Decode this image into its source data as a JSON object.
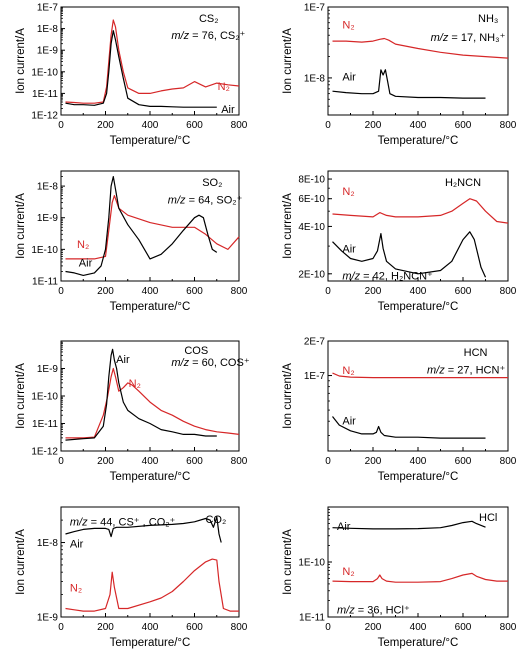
{
  "chart_data": [
    {
      "panel": "CS2",
      "type": "line",
      "yscale": "log",
      "title": "CS₂",
      "mz_label": "m/z = 76, CS₂⁺",
      "xlabel": "Temperature/°C",
      "ylabel": "Ion current/A",
      "xlim": [
        0,
        800
      ],
      "ylim": [
        1e-12,
        1e-07
      ],
      "xticks": [
        "0",
        "200",
        "400",
        "600",
        "800"
      ],
      "yticks": [
        "1E-12",
        "1E-11",
        "1E-10",
        "1E-9",
        "1E-8",
        "1E-7"
      ],
      "series": [
        {
          "name": "N₂",
          "color": "#d62728",
          "x": [
            20,
            60,
            100,
            150,
            190,
            205,
            215,
            225,
            235,
            245,
            260,
            280,
            300,
            350,
            400,
            450,
            500,
            550,
            600,
            650,
            700,
            750,
            800
          ],
          "y": [
            4e-12,
            3.8e-12,
            3.5e-12,
            3.5e-12,
            4e-12,
            2e-11,
            3e-10,
            5e-09,
            2.5e-08,
            1.2e-08,
            1e-09,
            1e-10,
            1.8e-11,
            1e-11,
            1e-11,
            1.3e-11,
            1.6e-11,
            1.8e-11,
            3.5e-11,
            2e-11,
            3e-11,
            2.5e-11,
            2.2e-11
          ]
        },
        {
          "name": "Air",
          "color": "#000000",
          "x": [
            20,
            60,
            100,
            150,
            190,
            205,
            215,
            225,
            235,
            245,
            260,
            280,
            300,
            350,
            400,
            450,
            500,
            550,
            600,
            650,
            700
          ],
          "y": [
            3.5e-12,
            3e-12,
            3e-12,
            2.8e-12,
            3.5e-12,
            1e-11,
            1e-10,
            2e-09,
            8e-09,
            3e-09,
            5e-10,
            5e-11,
            6e-12,
            3e-12,
            2.5e-12,
            2.5e-12,
            2.4e-12,
            2.3e-12,
            2.3e-12,
            2.3e-12,
            2.3e-12
          ]
        }
      ]
    },
    {
      "panel": "NH3",
      "type": "line",
      "yscale": "log",
      "title": "NH₃",
      "mz_label": "m/z = 17, NH₃⁺",
      "xlabel": "Temperature/°C",
      "ylabel": "Ion current/A",
      "xlim": [
        0,
        800
      ],
      "ylim": [
        3e-09,
        1e-07
      ],
      "xticks": [
        "0",
        "200",
        "400",
        "600",
        "800"
      ],
      "yticks": [
        "1E-8",
        "1E-7"
      ],
      "series": [
        {
          "name": "N₂",
          "color": "#d62728",
          "x": [
            20,
            80,
            150,
            200,
            230,
            250,
            270,
            300,
            400,
            500,
            600,
            700,
            800
          ],
          "y": [
            3.3e-08,
            3.3e-08,
            3.2e-08,
            3.3e-08,
            3.5e-08,
            3.6e-08,
            3.4e-08,
            3e-08,
            2.6e-08,
            2.3e-08,
            2.1e-08,
            2e-08,
            1.9e-08
          ]
        },
        {
          "name": "Air",
          "color": "#000000",
          "x": [
            20,
            80,
            150,
            200,
            225,
            235,
            245,
            255,
            265,
            275,
            300,
            400,
            500,
            600,
            700
          ],
          "y": [
            6.5e-09,
            6.2e-09,
            6e-09,
            6e-09,
            6.5e-09,
            1.3e-08,
            1.1e-08,
            1.3e-08,
            9e-09,
            6e-09,
            5.5e-09,
            5.3e-09,
            5.3e-09,
            5.2e-09,
            5.2e-09
          ]
        }
      ]
    },
    {
      "panel": "SO2",
      "type": "line",
      "yscale": "log",
      "title": "SO₂",
      "mz_label": "m/z = 64, SO₂⁺",
      "xlabel": "Temperature/°C",
      "ylabel": "Ion current/A",
      "xlim": [
        0,
        800
      ],
      "ylim": [
        1e-11,
        3e-08
      ],
      "xticks": [
        "0",
        "200",
        "400",
        "600",
        "800"
      ],
      "yticks": [
        "1E-11",
        "1E-10",
        "1E-9",
        "1E-8"
      ],
      "series": [
        {
          "name": "N₂",
          "color": "#d62728",
          "x": [
            20,
            80,
            150,
            200,
            215,
            230,
            240,
            260,
            300,
            400,
            500,
            600,
            650,
            700,
            750,
            800
          ],
          "y": [
            5e-11,
            5e-11,
            5e-11,
            6e-11,
            4e-10,
            3e-09,
            5e-09,
            2e-09,
            1.2e-09,
            7e-10,
            5e-10,
            5e-10,
            3e-10,
            1.5e-10,
            1e-10,
            2.5e-10
          ]
        },
        {
          "name": "Air",
          "color": "#000000",
          "x": [
            20,
            60,
            100,
            150,
            180,
            200,
            215,
            225,
            235,
            245,
            260,
            300,
            350,
            400,
            450,
            500,
            550,
            600,
            620,
            640,
            660,
            680,
            700
          ],
          "y": [
            2e-11,
            1.8e-11,
            1.5e-11,
            1.8e-11,
            3e-11,
            1e-10,
            1e-09,
            1e-08,
            2e-08,
            8e-09,
            2e-09,
            6e-10,
            2e-10,
            5e-11,
            7e-11,
            1.5e-10,
            4e-10,
            1e-09,
            1.2e-09,
            1e-09,
            3e-10,
            1e-10,
            8e-11
          ]
        }
      ]
    },
    {
      "panel": "H2NCN",
      "type": "line",
      "yscale": "log",
      "title": "H₂NCN",
      "mz_label": "m/z = 42, H₂NCN⁺",
      "xlabel": "Temperature/°C",
      "ylabel": "Ion current/A",
      "xlim": [
        0,
        800
      ],
      "ylim": [
        1.8e-10,
        9e-10
      ],
      "xticks": [
        "0",
        "200",
        "400",
        "600",
        "800"
      ],
      "yticks": [
        "2E-10",
        "4E-10",
        "6E-10",
        "8E-10"
      ],
      "series": [
        {
          "name": "N₂",
          "color": "#d62728",
          "x": [
            20,
            100,
            200,
            230,
            260,
            300,
            400,
            500,
            550,
            600,
            630,
            660,
            700,
            750,
            800
          ],
          "y": [
            4.8e-10,
            4.7e-10,
            4.6e-10,
            4.9e-10,
            4.7e-10,
            4.6e-10,
            4.6e-10,
            4.7e-10,
            5e-10,
            5.6e-10,
            6e-10,
            5.8e-10,
            5e-10,
            4.3e-10,
            4.2e-10
          ]
        },
        {
          "name": "Air",
          "color": "#000000",
          "x": [
            20,
            60,
            100,
            150,
            200,
            220,
            235,
            245,
            260,
            300,
            400,
            500,
            550,
            600,
            630,
            650,
            680,
            700
          ],
          "y": [
            3.2e-10,
            2.8e-10,
            2.5e-10,
            2.4e-10,
            2.5e-10,
            2.8e-10,
            3.6e-10,
            2.9e-10,
            2.4e-10,
            2.15e-10,
            2e-10,
            2.1e-10,
            2.4e-10,
            3.3e-10,
            3.7e-10,
            3.3e-10,
            2.2e-10,
            1.9e-10
          ]
        }
      ]
    },
    {
      "panel": "COS",
      "type": "line",
      "yscale": "log",
      "title": "COS",
      "mz_label": "m/z = 60, COS⁺",
      "xlabel": "Temperature/°C",
      "ylabel": "Ion current/A",
      "xlim": [
        0,
        800
      ],
      "ylim": [
        1e-12,
        1e-08
      ],
      "xticks": [
        "0",
        "200",
        "400",
        "600",
        "800"
      ],
      "yticks": [
        "1E-12",
        "1E-11",
        "1E-10",
        "1E-9"
      ],
      "series": [
        {
          "name": "N₂",
          "color": "#d62728",
          "x": [
            20,
            100,
            150,
            190,
            210,
            225,
            235,
            245,
            260,
            280,
            300,
            320,
            350,
            400,
            450,
            500,
            550,
            600,
            650,
            700,
            750,
            800
          ],
          "y": [
            3e-12,
            3e-12,
            3.2e-12,
            2e-11,
            1e-10,
            5e-10,
            1e-09,
            5e-10,
            1.5e-10,
            2e-10,
            3e-10,
            2.5e-10,
            1.5e-10,
            6e-11,
            3e-11,
            2e-11,
            1.2e-11,
            8e-12,
            6e-12,
            5e-12,
            4.5e-12,
            4e-12
          ]
        },
        {
          "name": "Air",
          "color": "#000000",
          "x": [
            20,
            100,
            150,
            190,
            205,
            215,
            225,
            232,
            240,
            250,
            260,
            280,
            300,
            350,
            400,
            450,
            500,
            550,
            600,
            650,
            700
          ],
          "y": [
            2.5e-12,
            2.8e-12,
            3e-12,
            8e-12,
            5e-11,
            5e-10,
            3e-09,
            5e-09,
            2e-09,
            1e-09,
            3e-10,
            6e-11,
            3e-11,
            1.5e-11,
            1e-11,
            6e-12,
            5e-12,
            4e-12,
            4e-12,
            3.5e-12,
            3.5e-12
          ]
        }
      ]
    },
    {
      "panel": "HCN",
      "type": "line",
      "yscale": "log",
      "title": "HCN",
      "mz_label": "m/z = 27, HCN⁺",
      "xlabel": "Temperature/°C",
      "ylabel": "Ion current/A",
      "xlim": [
        0,
        800
      ],
      "ylim": [
        2.2e-08,
        2e-07
      ],
      "xticks": [
        "0",
        "200",
        "400",
        "600",
        "800"
      ],
      "yticks": [
        "1E-7",
        "2E-7"
      ],
      "series": [
        {
          "name": "N₂",
          "color": "#d62728",
          "x": [
            20,
            50,
            100,
            200,
            300,
            400,
            500,
            600,
            700,
            800
          ],
          "y": [
            1.05e-07,
            9.9e-08,
            9.7e-08,
            9.6e-08,
            9.6e-08,
            9.6e-08,
            9.6e-08,
            9.6e-08,
            9.6e-08,
            9.6e-08
          ]
        },
        {
          "name": "Air",
          "color": "#000000",
          "x": [
            20,
            50,
            100,
            150,
            200,
            215,
            225,
            235,
            250,
            300,
            400,
            500,
            600,
            700
          ],
          "y": [
            4.4e-08,
            3.7e-08,
            3.3e-08,
            3.1e-08,
            3.1e-08,
            3.2e-08,
            3.6e-08,
            3.2e-08,
            3e-08,
            2.9e-08,
            2.9e-08,
            2.85e-08,
            2.85e-08,
            2.85e-08
          ]
        }
      ]
    },
    {
      "panel": "CO2",
      "type": "line",
      "yscale": "log",
      "title": "CO₂",
      "mz_label": "m/z = 44, CS⁺ , CO₂⁺",
      "xlabel": "Temperature/°C",
      "ylabel": "Ion current/A",
      "xlim": [
        0,
        800
      ],
      "ylim": [
        1e-09,
        3e-08
      ],
      "xticks": [
        "0",
        "200",
        "400",
        "600",
        "800"
      ],
      "yticks": [
        "1E-9",
        "1E-8"
      ],
      "series": [
        {
          "name": "N₂",
          "color": "#d62728",
          "x": [
            20,
            60,
            100,
            150,
            200,
            220,
            230,
            240,
            260,
            300,
            400,
            450,
            500,
            550,
            600,
            650,
            680,
            700,
            710,
            730,
            760,
            800
          ],
          "y": [
            1.3e-09,
            1.25e-09,
            1.2e-09,
            1.2e-09,
            1.3e-09,
            2e-09,
            4e-09,
            2.5e-09,
            1.3e-09,
            1.3e-09,
            1.6e-09,
            1.8e-09,
            2.2e-09,
            3e-09,
            4.2e-09,
            5.5e-09,
            6e-09,
            5.8e-09,
            3e-09,
            1.3e-09,
            1.2e-09,
            1.2e-09
          ]
        },
        {
          "name": "Air",
          "color": "#000000",
          "x": [
            20,
            60,
            100,
            150,
            200,
            215,
            225,
            235,
            250,
            300,
            400,
            500,
            550,
            600,
            650,
            670,
            685,
            700,
            710,
            720
          ],
          "y": [
            1.3e-08,
            1.4e-08,
            1.5e-08,
            1.55e-08,
            1.55e-08,
            1.5e-08,
            1.2e-08,
            1.55e-08,
            1.6e-08,
            1.6e-08,
            1.7e-08,
            1.75e-08,
            1.8e-08,
            1.9e-08,
            2.1e-08,
            2e-08,
            1.6e-08,
            2.2e-08,
            1.3e-08,
            1e-08
          ]
        }
      ]
    },
    {
      "panel": "HCl",
      "type": "line",
      "yscale": "log",
      "title": "HCl",
      "mz_label": "m/z = 36, HCl⁺",
      "xlabel": "Temperature/°C",
      "ylabel": "Ion current/A",
      "xlim": [
        0,
        800
      ],
      "ylim": [
        1e-11,
        1e-09
      ],
      "xticks": [
        "0",
        "200",
        "400",
        "600",
        "800"
      ],
      "yticks": [
        "1E-11",
        "1E-10"
      ],
      "series": [
        {
          "name": "Air",
          "color": "#000000",
          "x": [
            20,
            100,
            200,
            300,
            400,
            500,
            550,
            600,
            640,
            660,
            700
          ],
          "y": [
            4.2e-10,
            4.1e-10,
            4e-10,
            4e-10,
            4.05e-10,
            4.2e-10,
            4.6e-10,
            5.2e-10,
            5.5e-10,
            5e-10,
            4.3e-10
          ]
        },
        {
          "name": "N₂",
          "color": "#d62728",
          "x": [
            20,
            100,
            200,
            220,
            230,
            240,
            260,
            300,
            400,
            500,
            550,
            600,
            640,
            660,
            700,
            750,
            800
          ],
          "y": [
            4.5e-11,
            4.4e-11,
            4.4e-11,
            5e-11,
            5.8e-11,
            5e-11,
            4.5e-11,
            4.3e-11,
            4.3e-11,
            4.4e-11,
            5e-11,
            5.8e-11,
            6.2e-11,
            5.5e-11,
            4.8e-11,
            4.5e-11,
            4.5e-11
          ]
        }
      ]
    }
  ]
}
